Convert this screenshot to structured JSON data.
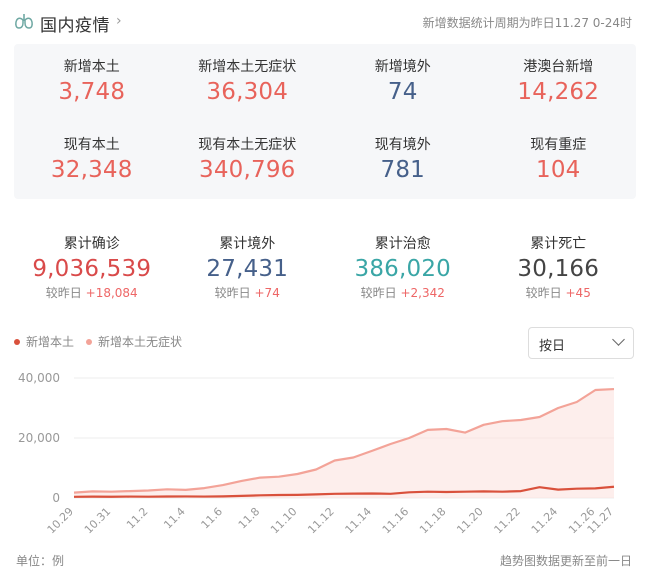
{
  "header": {
    "title": "国内疫情",
    "note": "新增数据统计周期为昨日11.27 0-24时"
  },
  "stats_row1": [
    {
      "label": "新增本土",
      "value": "3,748",
      "color": "#e8635b"
    },
    {
      "label": "新增本土无症状",
      "value": "36,304",
      "color": "#e8635b"
    },
    {
      "label": "新增境外",
      "value": "74",
      "color": "#46608a"
    },
    {
      "label": "港澳台新增",
      "value": "14,262",
      "color": "#e8635b"
    }
  ],
  "stats_row2": [
    {
      "label": "现有本土",
      "value": "32,348",
      "color": "#e8635b"
    },
    {
      "label": "现有本土无症状",
      "value": "340,796",
      "color": "#e8635b"
    },
    {
      "label": "现有境外",
      "value": "781",
      "color": "#46608a"
    },
    {
      "label": "现有重症",
      "value": "104",
      "color": "#e8635b"
    }
  ],
  "totals": [
    {
      "label": "累计确诊",
      "value": "9,036,539",
      "cmp_label": "较昨日",
      "delta": "+18,084",
      "color": "#d94a4a"
    },
    {
      "label": "累计境外",
      "value": "27,431",
      "cmp_label": "较昨日",
      "delta": "+74",
      "color": "#46608a"
    },
    {
      "label": "累计治愈",
      "value": "386,020",
      "cmp_label": "较昨日",
      "delta": "+2,342",
      "color": "#3aa6a6"
    },
    {
      "label": "累计死亡",
      "value": "30,166",
      "cmp_label": "较昨日",
      "delta": "+45",
      "color": "#444444"
    }
  ],
  "legend": {
    "series1": "新增本土",
    "series2": "新增本土无症状"
  },
  "select": {
    "value": "按日"
  },
  "footer": {
    "unit": "单位：例",
    "note": "趋势图数据更新至前一日"
  },
  "chart_data": {
    "type": "line",
    "x": [
      "10.29",
      "10.30",
      "10.31",
      "11.1",
      "11.2",
      "11.3",
      "11.4",
      "11.5",
      "11.6",
      "11.7",
      "11.8",
      "11.9",
      "11.10",
      "11.11",
      "11.12",
      "11.13",
      "11.14",
      "11.15",
      "11.16",
      "11.17",
      "11.18",
      "11.19",
      "11.20",
      "11.21",
      "11.22",
      "11.23",
      "11.24",
      "11.25",
      "11.26",
      "11.27"
    ],
    "tick_labels": [
      "10.29",
      "10.31",
      "11.2",
      "11.4",
      "11.6",
      "11.8",
      "11.10",
      "11.12",
      "11.14",
      "11.16",
      "11.18",
      "11.20",
      "11.22",
      "11.24",
      "11.26",
      "11.27"
    ],
    "y_ticks": [
      "0",
      "20,000",
      "40,000"
    ],
    "ylim": [
      0,
      42000
    ],
    "series": [
      {
        "name": "新增本土",
        "color": "#d9513c",
        "values": [
          400,
          450,
          420,
          480,
          430,
          500,
          520,
          480,
          550,
          700,
          900,
          1000,
          1050,
          1200,
          1400,
          1450,
          1500,
          1400,
          1900,
          2100,
          2000,
          2100,
          2200,
          2100,
          2300,
          3600,
          2800,
          3100,
          3200,
          3748
        ]
      },
      {
        "name": "新增本土无症状",
        "color": "#f3a398",
        "values": [
          1800,
          2200,
          2100,
          2300,
          2500,
          2900,
          2700,
          3300,
          4300,
          5700,
          6800,
          7100,
          8000,
          9500,
          12500,
          13500,
          15700,
          18000,
          20000,
          22700,
          23000,
          21800,
          24400,
          25600,
          26000,
          27000,
          30000,
          32000,
          36000,
          36304
        ]
      }
    ]
  }
}
